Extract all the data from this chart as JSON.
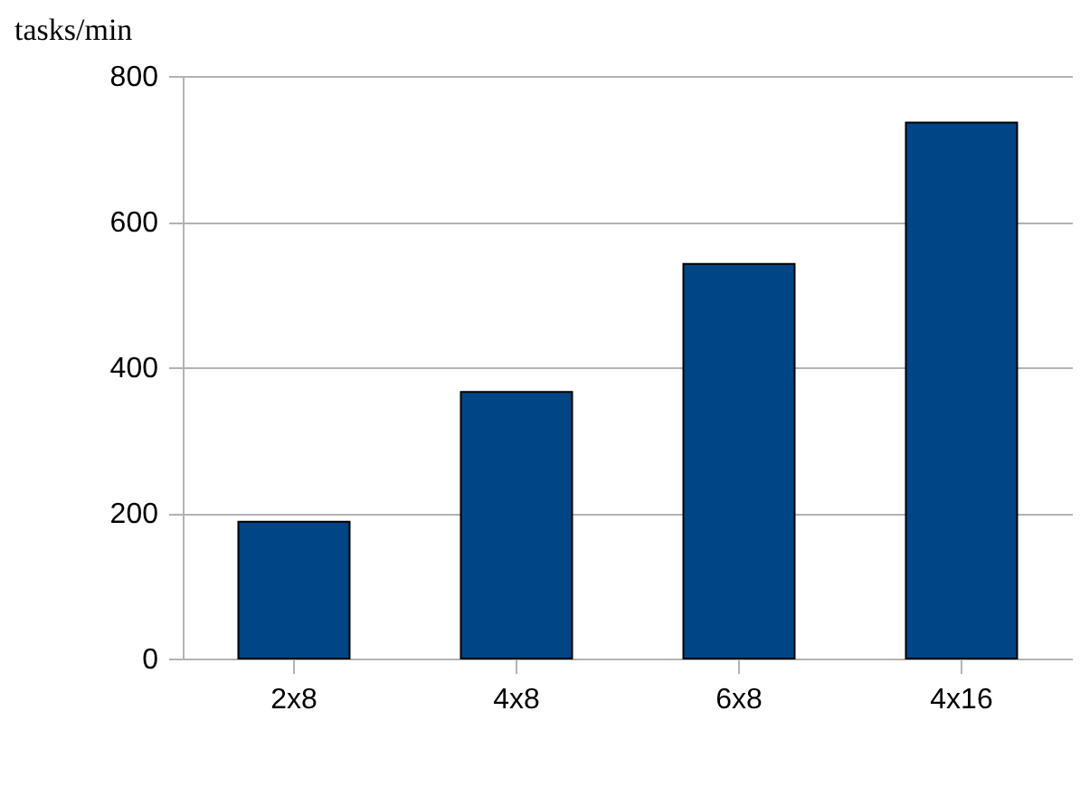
{
  "chart_data": {
    "type": "bar",
    "ylabel": "tasks/min",
    "categories": [
      "2x8",
      "4x8",
      "6x8",
      "4x16"
    ],
    "values": [
      188,
      366,
      542,
      736
    ],
    "color": "#004586",
    "ylim": [
      0,
      800
    ],
    "yticks": [
      0,
      200,
      400,
      600,
      800
    ],
    "grid": "y"
  }
}
